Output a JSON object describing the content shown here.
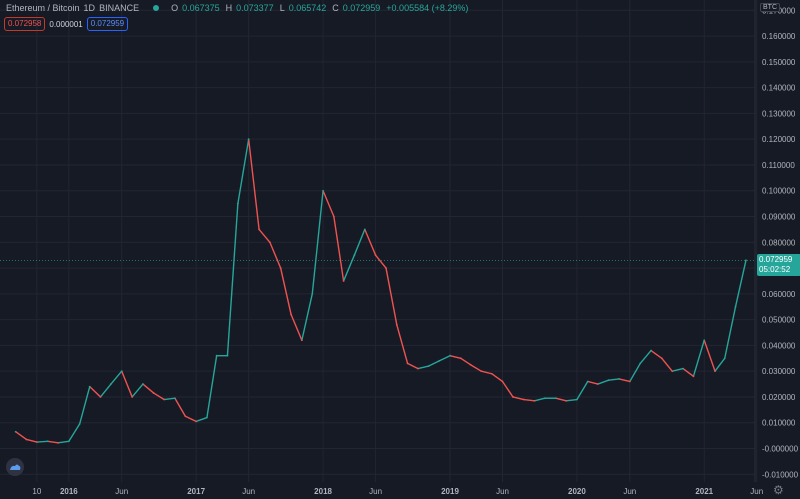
{
  "header": {
    "symbol": "Ethereum / Bitcoin",
    "interval": "1D",
    "exchange": "BINANCE",
    "ohlc": {
      "o_label": "O",
      "o_value": "0.067375",
      "h_label": "H",
      "h_value": "0.073377",
      "l_label": "L",
      "l_value": "0.065742",
      "c_label": "C",
      "c_value": "0.072959",
      "change": "+0.005584 (+8.29%)"
    },
    "bid_price": "0.072958",
    "spread": "0.000001",
    "ask_price": "0.072959"
  },
  "price_axis": {
    "currency": "BTC",
    "last_price": "0.072959",
    "countdown": "05:02:52"
  },
  "colors": {
    "background": "#161a25",
    "grid": "#232632",
    "up": "#26a69a",
    "down": "#ef5350"
  },
  "chart_data": {
    "type": "line",
    "series": [
      {
        "x": [
          "2015-08",
          "2015-09",
          "2015-10",
          "2015-11",
          "2015-12",
          "2016-01",
          "2016-02",
          "2016-03",
          "2016-04",
          "2016-05",
          "2016-06",
          "2016-07",
          "2016-08",
          "2016-09",
          "2016-10",
          "2016-11",
          "2016-12",
          "2017-01",
          "2017-02",
          "2017-03",
          "2017-04",
          "2017-05",
          "2017-06",
          "2017-07",
          "2017-08",
          "2017-09",
          "2017-10",
          "2017-11",
          "2017-12",
          "2018-01",
          "2018-02",
          "2018-03",
          "2018-04",
          "2018-05",
          "2018-06",
          "2018-07",
          "2018-08",
          "2018-09",
          "2018-10",
          "2018-11",
          "2018-12",
          "2019-01",
          "2019-02",
          "2019-03",
          "2019-04",
          "2019-05",
          "2019-06",
          "2019-07",
          "2019-08",
          "2019-09",
          "2019-10",
          "2019-11",
          "2019-12",
          "2020-01",
          "2020-02",
          "2020-03",
          "2020-04",
          "2020-05",
          "2020-06",
          "2020-07",
          "2020-08",
          "2020-09",
          "2020-10",
          "2020-11",
          "2020-12",
          "2021-01",
          "2021-02",
          "2021-03",
          "2021-04",
          "2021-05"
        ],
        "y": [
          0.0065,
          0.0035,
          0.0025,
          0.0028,
          0.0022,
          0.0028,
          0.0095,
          0.024,
          0.02,
          0.025,
          0.03,
          0.02,
          0.025,
          0.0215,
          0.019,
          0.0195,
          0.0125,
          0.0105,
          0.012,
          0.036,
          0.036,
          0.095,
          0.12,
          0.085,
          0.08,
          0.07,
          0.052,
          0.042,
          0.06,
          0.1,
          0.09,
          0.065,
          0.075,
          0.085,
          0.075,
          0.07,
          0.048,
          0.033,
          0.031,
          0.032,
          0.034,
          0.036,
          0.035,
          0.0325,
          0.03,
          0.029,
          0.026,
          0.02,
          0.019,
          0.0185,
          0.0195,
          0.0195,
          0.0185,
          0.019,
          0.026,
          0.025,
          0.0265,
          0.027,
          0.026,
          0.033,
          0.038,
          0.035,
          0.03,
          0.031,
          0.028,
          0.042,
          0.03,
          0.035,
          0.055,
          0.073
        ]
      }
    ],
    "y_ticks": [
      "-0.010000",
      "-0.000000",
      "0.010000",
      "0.020000",
      "0.030000",
      "0.040000",
      "0.050000",
      "0.060000",
      "0.070000",
      "0.080000",
      "0.090000",
      "0.100000",
      "0.110000",
      "0.120000",
      "0.130000",
      "0.140000",
      "0.150000",
      "0.160000",
      "0.170000"
    ],
    "ylim": [
      -0.013,
      0.174
    ],
    "x_ticks": [
      {
        "label": "10",
        "date": "2015-10",
        "major": false
      },
      {
        "label": "2016",
        "date": "2016-01",
        "major": true
      },
      {
        "label": "Jun",
        "date": "2016-06",
        "major": false
      },
      {
        "label": "2017",
        "date": "2017-01",
        "major": true
      },
      {
        "label": "Jun",
        "date": "2017-06",
        "major": false
      },
      {
        "label": "2018",
        "date": "2018-01",
        "major": true
      },
      {
        "label": "Jun",
        "date": "2018-06",
        "major": false
      },
      {
        "label": "2019",
        "date": "2019-01",
        "major": true
      },
      {
        "label": "Jun",
        "date": "2019-06",
        "major": false
      },
      {
        "label": "2020",
        "date": "2020-01",
        "major": true
      },
      {
        "label": "Jun",
        "date": "2020-06",
        "major": false
      },
      {
        "label": "2021",
        "date": "2021-01",
        "major": true
      },
      {
        "label": "Jun",
        "date": "2021-06",
        "major": false
      }
    ],
    "grid": true,
    "legend": "none"
  }
}
